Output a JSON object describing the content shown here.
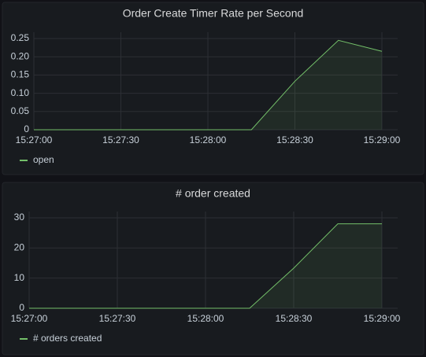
{
  "chart_data": [
    {
      "type": "line",
      "title": "Order Create Timer Rate per Second",
      "x": [
        "15:27:00",
        null,
        "15:27:30",
        null,
        "15:28:00",
        null,
        "15:28:30",
        null,
        "15:29:00"
      ],
      "series": [
        {
          "name": "open",
          "color": "#73bf69",
          "values": [
            0,
            0,
            0,
            0,
            0,
            0,
            0.133,
            0.245,
            0.215
          ]
        }
      ],
      "ylim": [
        0,
        0.25
      ],
      "yticks": [
        0,
        0.05,
        {
          "value": 0.1,
          "label": "0.10"
        },
        0.15,
        {
          "value": 0.2,
          "label": "0.20"
        },
        0.25
      ],
      "grid": true,
      "legend": "bottom-left"
    },
    {
      "type": "line",
      "title": "# order created",
      "x": [
        "15:27:00",
        null,
        "15:27:30",
        null,
        "15:28:00",
        null,
        "15:28:30",
        null,
        "15:29:00"
      ],
      "series": [
        {
          "name": "# orders created",
          "color": "#73bf69",
          "values": [
            0,
            0,
            0,
            0,
            0,
            0,
            13.3,
            28,
            28
          ]
        }
      ],
      "ylim": [
        0,
        30
      ],
      "yticks": [
        0,
        10,
        20,
        30
      ],
      "grid": true,
      "legend": "bottom-left"
    }
  ]
}
